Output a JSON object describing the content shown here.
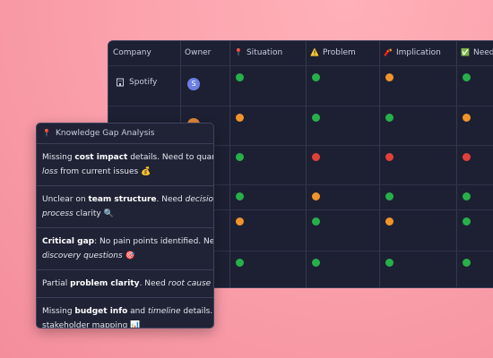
{
  "table": {
    "headers": [
      {
        "label": "Company"
      },
      {
        "label": "Owner"
      },
      {
        "icon": "📍",
        "label": "Situation"
      },
      {
        "icon": "⚠️",
        "label": "Problem"
      },
      {
        "icon": "🧨",
        "label": "Implication"
      },
      {
        "icon": "✅",
        "label": "Need"
      }
    ],
    "rows": [
      {
        "company": "Spotify",
        "owner": "S",
        "owner_color": "#6b7fe3",
        "statuses": [
          "green",
          "green",
          "orange",
          "green"
        ]
      },
      {
        "owner_color": "#e0873a",
        "statuses": [
          "orange",
          "green",
          "green",
          "orange"
        ]
      },
      {
        "statuses": [
          "green",
          "red",
          "red",
          "red"
        ]
      },
      {
        "statuses": [
          "green",
          "orange",
          "green",
          "green"
        ]
      },
      {
        "statuses": [
          "orange",
          "green",
          "orange",
          "green"
        ]
      },
      {
        "statuses": [
          "green",
          "green",
          "green",
          "green"
        ]
      }
    ]
  },
  "popup": {
    "icon": "📍",
    "title": "Knowledge Gap Analysis",
    "items": [
      {
        "lines": [
          [
            {
              "text": "Missing "
            },
            {
              "text": "cost impact",
              "style": "bold"
            },
            {
              "text": " details. Need to quantify"
            }
          ],
          [
            {
              "text": "loss",
              "style": "italic"
            },
            {
              "text": " from current issues 💰"
            }
          ]
        ]
      },
      {
        "lines": [
          [
            {
              "text": "Unclear on "
            },
            {
              "text": "team structure",
              "style": "bold"
            },
            {
              "text": ". Need "
            },
            {
              "text": "decision-making",
              "style": "italic"
            }
          ],
          [
            {
              "text": "process",
              "style": "italic"
            },
            {
              "text": " clarity 🔍"
            }
          ]
        ]
      },
      {
        "lines": [
          [
            {
              "text": "Critical gap",
              "style": "bold"
            },
            {
              "text": ": No pain points identified. Need"
            }
          ],
          [
            {
              "text": "discovery questions",
              "style": "italic"
            },
            {
              "text": " 🎯"
            }
          ]
        ]
      },
      {
        "lines": [
          [
            {
              "text": "Partial "
            },
            {
              "text": "problem clarity",
              "style": "bold"
            },
            {
              "text": ". Need "
            },
            {
              "text": "root cause analysis",
              "style": "italic"
            }
          ]
        ]
      },
      {
        "lines": [
          [
            {
              "text": "Missing "
            },
            {
              "text": "budget info",
              "style": "bold"
            },
            {
              "text": " and "
            },
            {
              "text": "timeline",
              "style": "italic"
            },
            {
              "text": " details. Need"
            }
          ],
          [
            {
              "text": "stakeholder mapping 📊"
            }
          ]
        ]
      }
    ]
  }
}
